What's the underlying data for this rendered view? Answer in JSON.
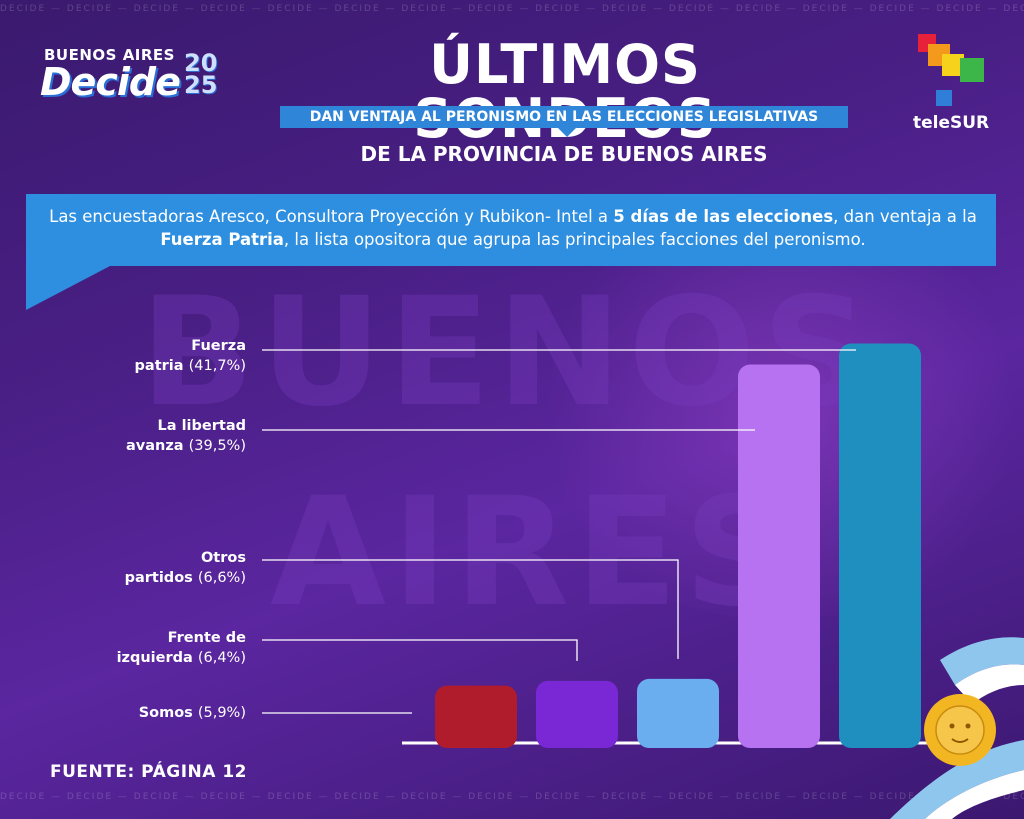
{
  "logo": {
    "top_text": "BUENOS AIRES",
    "main_text": "Decide",
    "year_top": "20",
    "year_bottom": "25"
  },
  "header": {
    "title": "ÚLTIMOS SONDEOS",
    "subtitle": "DAN VENTAJA AL PERONISMO EN LAS ELECCIONES LEGISLATIVAS",
    "subtitle2": "DE LA PROVINCIA DE BUENOS AIRES"
  },
  "brand": {
    "name": "teleSUR"
  },
  "description": {
    "part1": "Las encuestadoras Aresco, Consultora Proyección y Rubikon- Intel a ",
    "bold1": "5 días de las elecciones",
    "part2": ", dan ventaja a la ",
    "bold2": "Fuerza Patria",
    "part3": ", la lista opositora que agrupa las principales facciones del peronismo."
  },
  "background": {
    "pattern_word": "DECIDE",
    "word1": "BUENOS",
    "word2": "AIRES"
  },
  "chart_data": {
    "type": "bar",
    "title": "",
    "xlabel": "",
    "ylabel": "",
    "ylim": [
      0,
      45
    ],
    "categories": [
      "Somos",
      "Frente de izquierda",
      "Otros partidos",
      "La libertad avanza",
      "Fuerza patria"
    ],
    "values": [
      5.9,
      6.4,
      6.6,
      39.5,
      41.7
    ],
    "colors": [
      "#b01c2c",
      "#7a28d6",
      "#6aaef0",
      "#b772f2",
      "#1f8fbf"
    ],
    "labels": [
      {
        "bold_line1": "Somos",
        "bold_line2": "",
        "value_text": "(5,9%)"
      },
      {
        "bold_line1": "Frente de",
        "bold_line2": "izquierda",
        "value_text": "(6,4%)"
      },
      {
        "bold_line1": "Otros",
        "bold_line2": "partidos",
        "value_text": "(6,6%)"
      },
      {
        "bold_line1": "La libertad",
        "bold_line2": "avanza",
        "value_text": "(39,5%)"
      },
      {
        "bold_line1": "Fuerza",
        "bold_line2": "patria",
        "value_text": "(41,7%)"
      }
    ]
  },
  "footer": {
    "source": "FUENTE: PÁGINA 12"
  }
}
